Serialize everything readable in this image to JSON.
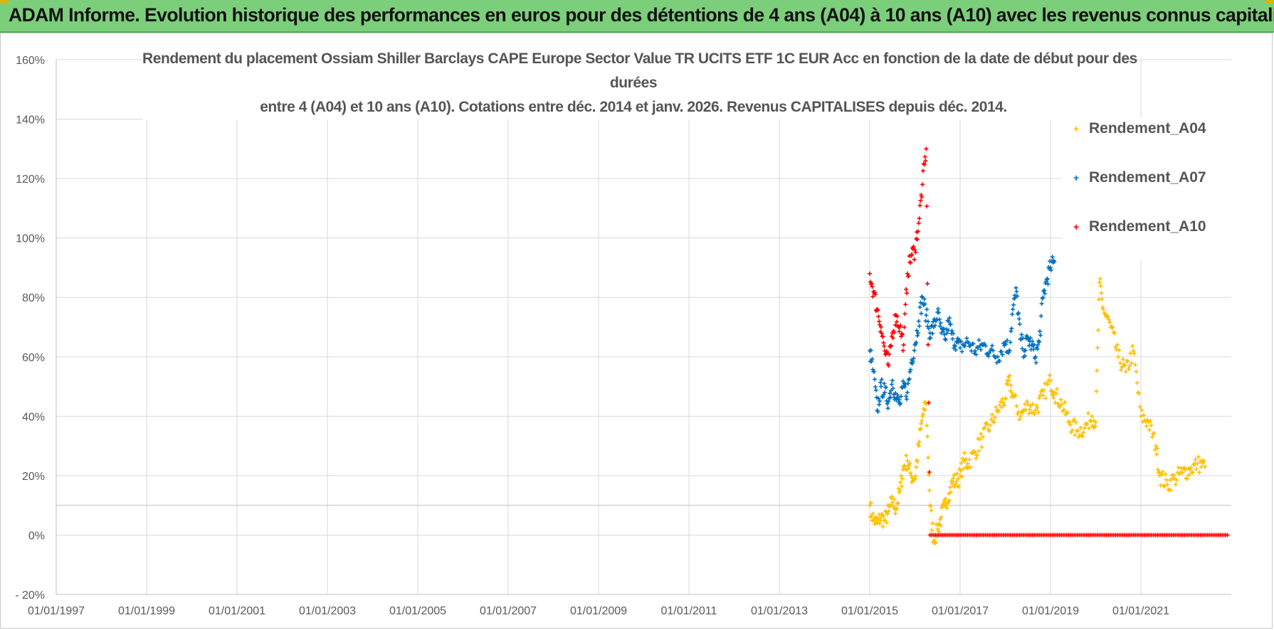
{
  "header": {
    "title": "ADAM Informe. Evolution historique des performances en euros pour des détentions de 4 ans (A04) à 10 ans (A10) avec les revenus connus capitalisés"
  },
  "chart_data": {
    "type": "scatter",
    "title_lines": [
      "Rendement du placement Ossiam Shiller Barclays CAPE Europe Sector Value TR UCITS ETF 1C EUR Acc en fonction de la date de début pour des",
      "durées",
      "entre 4 (A04) et 10 ans (A10). Cotations entre déc. 2014 et janv. 2026. Revenus CAPITALISES depuis déc. 2014."
    ],
    "xlabel": "",
    "ylabel": "",
    "x_range": [
      "1997-01-01",
      "2023-01-01"
    ],
    "x_ticks": [
      "01/01/1997",
      "01/01/1999",
      "01/01/2001",
      "01/01/2003",
      "01/01/2005",
      "01/01/2007",
      "01/01/2009",
      "01/01/2011",
      "01/01/2013",
      "01/01/2015",
      "01/01/2017",
      "01/01/2019",
      "01/01/2021"
    ],
    "ylim": [
      -20,
      160
    ],
    "y_ticks": [
      "- 20%",
      "0%",
      "20%",
      "40%",
      "60%",
      "80%",
      "100%",
      "120%",
      "140%",
      "160%"
    ],
    "grid": true,
    "legend_position": "top-right",
    "series": [
      {
        "name": "Rendement_A04",
        "color": "#ffc000",
        "marker": "+",
        "points": [
          [
            "2015-01",
            10
          ],
          [
            "2015-02",
            5
          ],
          [
            "2015-03",
            4
          ],
          [
            "2015-04",
            6
          ],
          [
            "2015-05",
            5
          ],
          [
            "2015-06",
            8
          ],
          [
            "2015-07",
            11
          ],
          [
            "2015-08",
            9
          ],
          [
            "2015-09",
            15
          ],
          [
            "2015-10",
            23
          ],
          [
            "2015-11",
            25
          ],
          [
            "2015-12",
            20
          ],
          [
            "2016-01",
            19
          ],
          [
            "2016-02",
            30
          ],
          [
            "2016-03",
            40
          ],
          [
            "2016-04",
            44
          ],
          [
            "2016-05",
            10
          ],
          [
            "2016-06",
            -2
          ],
          [
            "2016-07",
            2
          ],
          [
            "2016-08",
            6
          ],
          [
            "2016-09",
            10
          ],
          [
            "2016-10",
            14
          ],
          [
            "2016-11",
            18
          ],
          [
            "2016-12",
            18
          ],
          [
            "2017-01",
            20
          ],
          [
            "2017-02",
            25
          ],
          [
            "2017-03",
            24
          ],
          [
            "2017-05",
            28
          ],
          [
            "2017-07",
            33
          ],
          [
            "2017-09",
            37
          ],
          [
            "2017-11",
            42
          ],
          [
            "2018-01",
            46
          ],
          [
            "2018-02",
            52
          ],
          [
            "2018-03",
            47
          ],
          [
            "2018-05",
            40
          ],
          [
            "2018-07",
            44
          ],
          [
            "2018-09",
            42
          ],
          [
            "2018-11",
            47
          ],
          [
            "2019-01",
            52
          ],
          [
            "2019-02",
            48
          ],
          [
            "2019-04",
            44
          ],
          [
            "2019-06",
            38
          ],
          [
            "2019-08",
            35
          ],
          [
            "2019-10",
            36
          ],
          [
            "2019-12",
            40
          ],
          [
            "2020-01",
            38
          ],
          [
            "2020-02",
            85
          ],
          [
            "2020-03",
            76
          ],
          [
            "2020-05",
            70
          ],
          [
            "2020-07",
            60
          ],
          [
            "2020-09",
            55
          ],
          [
            "2020-11",
            62
          ],
          [
            "2021-01",
            40
          ],
          [
            "2021-03",
            38
          ],
          [
            "2021-05",
            30
          ],
          [
            "2021-06",
            20
          ],
          [
            "2021-08",
            17
          ],
          [
            "2021-10",
            19
          ],
          [
            "2021-12",
            21
          ],
          [
            "2022-02",
            22
          ],
          [
            "2022-04",
            24
          ],
          [
            "2022-06",
            23
          ]
        ]
      },
      {
        "name": "Rendement_A07",
        "color": "#0070c0",
        "marker": "+",
        "points": [
          [
            "2015-01",
            62
          ],
          [
            "2015-02",
            55
          ],
          [
            "2015-03",
            42
          ],
          [
            "2015-04",
            50
          ],
          [
            "2015-05",
            48
          ],
          [
            "2015-06",
            45
          ],
          [
            "2015-07",
            52
          ],
          [
            "2015-08",
            46
          ],
          [
            "2015-09",
            44
          ],
          [
            "2015-10",
            50
          ],
          [
            "2015-11",
            48
          ],
          [
            "2015-12",
            58
          ],
          [
            "2016-01",
            64
          ],
          [
            "2016-02",
            72
          ],
          [
            "2016-03",
            80
          ],
          [
            "2016-04",
            74
          ],
          [
            "2016-05",
            68
          ],
          [
            "2016-06",
            70
          ],
          [
            "2016-07",
            75
          ],
          [
            "2016-08",
            68
          ],
          [
            "2016-09",
            66
          ],
          [
            "2016-10",
            72
          ],
          [
            "2016-11",
            66
          ],
          [
            "2016-12",
            65
          ],
          [
            "2017-01",
            63
          ],
          [
            "2017-03",
            65
          ],
          [
            "2017-05",
            62
          ],
          [
            "2017-07",
            64
          ],
          [
            "2017-09",
            62
          ],
          [
            "2017-11",
            60
          ],
          [
            "2018-01",
            65
          ],
          [
            "2018-02",
            62
          ],
          [
            "2018-03",
            76
          ],
          [
            "2018-04",
            82
          ],
          [
            "2018-05",
            66
          ],
          [
            "2018-06",
            62
          ],
          [
            "2018-07",
            66
          ],
          [
            "2018-08",
            64
          ],
          [
            "2018-09",
            60
          ],
          [
            "2018-10",
            65
          ],
          [
            "2018-11",
            80
          ],
          [
            "2018-12",
            86
          ],
          [
            "2019-01",
            90
          ],
          [
            "2019-02",
            92
          ]
        ]
      },
      {
        "name": "Rendement_A10",
        "color": "#ff0000",
        "marker": "+",
        "points": [
          [
            "2015-01",
            88
          ],
          [
            "2015-02",
            82
          ],
          [
            "2015-03",
            76
          ],
          [
            "2015-04",
            70
          ],
          [
            "2015-05",
            62
          ],
          [
            "2015-06",
            57
          ],
          [
            "2015-07",
            68
          ],
          [
            "2015-08",
            74
          ],
          [
            "2015-09",
            70
          ],
          [
            "2015-10",
            64
          ],
          [
            "2015-11",
            88
          ],
          [
            "2015-12",
            94
          ],
          [
            "2016-01",
            96
          ],
          [
            "2016-02",
            105
          ],
          [
            "2016-03",
            118
          ],
          [
            "2016-04",
            130
          ],
          [
            "2016-05",
            0
          ],
          [
            "2017-01",
            0
          ],
          [
            "2018-01",
            0
          ],
          [
            "2019-01",
            0
          ],
          [
            "2020-01",
            0
          ],
          [
            "2021-01",
            0
          ],
          [
            "2022-01",
            0
          ],
          [
            "2022-12",
            0
          ]
        ]
      }
    ]
  }
}
